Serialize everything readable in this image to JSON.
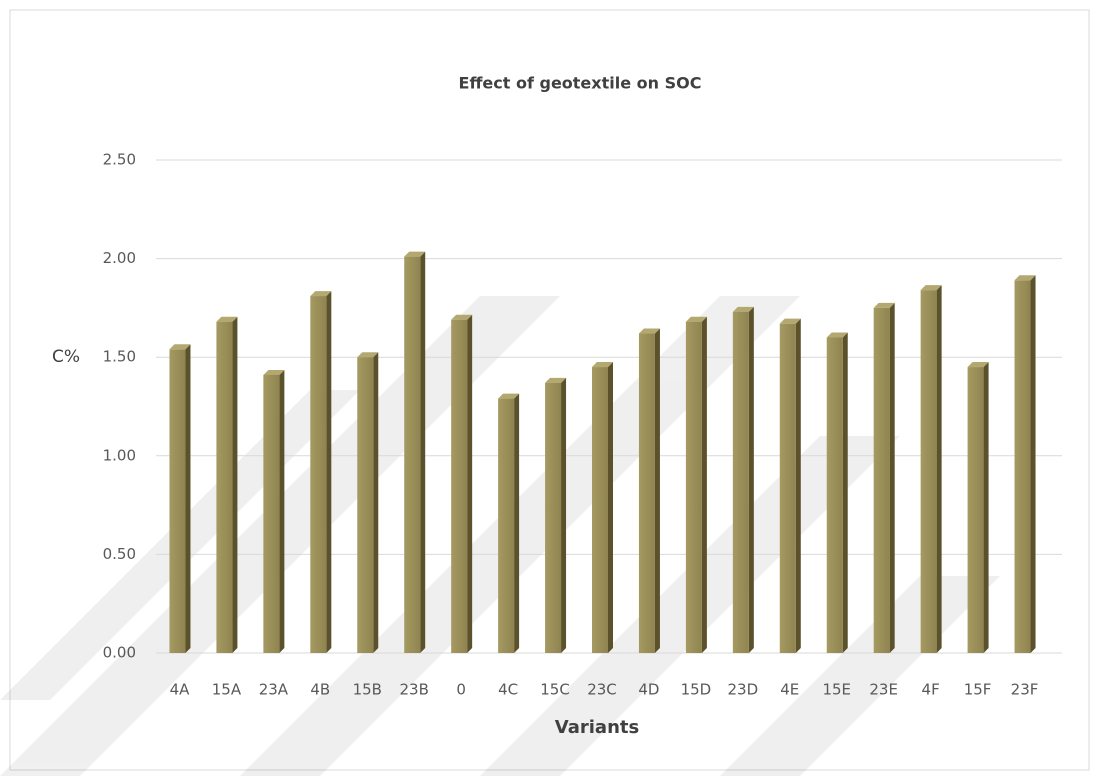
{
  "chart_data": {
    "type": "bar",
    "title": "Effect of geotextile on SOC",
    "x_label": "Variants",
    "y_label": "C%",
    "categories": [
      "4A",
      "15A",
      "23A",
      "4B",
      "15B",
      "23B",
      "0",
      "4C",
      "15C",
      "23C",
      "4D",
      "15D",
      "23D",
      "4E",
      "15E",
      "23E",
      "4F",
      "15F",
      "23F"
    ],
    "values": [
      1.54,
      1.68,
      1.41,
      1.81,
      1.5,
      2.01,
      1.69,
      1.29,
      1.37,
      1.45,
      1.62,
      1.68,
      1.73,
      1.67,
      1.6,
      1.75,
      1.84,
      1.45,
      1.89
    ],
    "color": "#8f8350",
    "ylim": [
      0,
      2.5
    ],
    "yticks": [
      {
        "value": 0,
        "label": "0.00"
      },
      {
        "value": 0.5,
        "label": "0.50"
      },
      {
        "value": 1,
        "label": "1.00"
      },
      {
        "value": 1.5,
        "label": "1.50"
      },
      {
        "value": 2,
        "label": "2.00"
      },
      {
        "value": 2.5,
        "label": "2.50"
      }
    ],
    "grid": true
  }
}
